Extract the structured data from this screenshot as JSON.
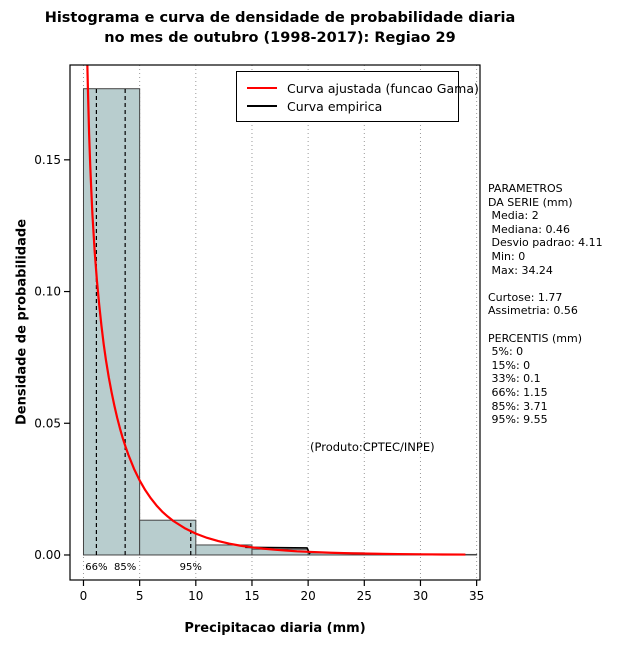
{
  "title": {
    "line1": "Histograma e curva de densidade de probabilidade diaria",
    "line2": "no mes de outubro (1998-2017): Regiao 29"
  },
  "axes": {
    "x_label": "Precipitacao diaria (mm)",
    "y_label": "Densidade de probabilidade"
  },
  "legend": [
    {
      "label": "Curva ajustada (funcao Gama)",
      "color": "#ff0000"
    },
    {
      "label": "Curva empirica",
      "color": "#000000"
    }
  ],
  "annotation": "(Produto:CPTEC/INPE)",
  "side_panel": {
    "lines": [
      "PARAMETROS",
      "DA SERIE (mm)",
      " Media: 2",
      " Mediana: 0.46",
      " Desvio padrao: 4.11",
      " Min: 0",
      " Max: 34.24",
      "",
      "Curtose: 1.77",
      "Assimetria: 0.56",
      "",
      "PERCENTIS (mm)",
      " 5%: 0",
      " 15%: 0",
      " 33%: 0.1",
      " 66%: 1.15",
      " 85%: 3.71",
      " 95%: 9.55"
    ]
  },
  "chart_data": {
    "type": "bar",
    "subtype": "histogram-with-density-curves",
    "title": "Histograma e curva de densidade de probabilidade diaria no mes de outubro (1998-2017): Regiao 29",
    "xlabel": "Precipitacao diaria (mm)",
    "ylabel": "Densidade de probabilidade",
    "xlim": [
      -1.2,
      35.3
    ],
    "ylim": [
      -0.0095,
      0.186
    ],
    "x_ticks": [
      0,
      5,
      10,
      15,
      20,
      25,
      30,
      35
    ],
    "y_ticks": [
      {
        "v": 0.0,
        "label": "0.00"
      },
      {
        "v": 0.05,
        "label": "0.05"
      },
      {
        "v": 0.1,
        "label": "0.10"
      },
      {
        "v": 0.15,
        "label": "0.15"
      }
    ],
    "grid": "vertical-dotted",
    "grid_color": "#999999",
    "histogram": {
      "bin_start": 0,
      "bin_width": 5,
      "densities": [
        0.177,
        0.0132,
        0.0038,
        0.0022,
        0.0008,
        0.0004,
        0.0002
      ],
      "fill": "#b8cdce",
      "stroke": "#444444"
    },
    "fitted_curve": {
      "name": "Curva ajustada (funcao Gama)",
      "color": "#ff0000",
      "x": [
        0.25,
        0.3,
        0.35,
        0.4,
        0.5,
        0.6,
        0.7,
        0.8,
        0.9,
        1.0,
        1.2,
        1.4,
        1.6,
        1.8,
        2.0,
        2.25,
        2.5,
        2.75,
        3.0,
        3.25,
        3.5,
        3.75,
        4.0,
        4.5,
        5.0,
        5.5,
        6.0,
        6.5,
        7.0,
        7.5,
        8.0,
        9.0,
        10,
        11,
        12,
        13,
        14,
        15,
        16,
        17,
        18,
        19,
        20,
        22,
        24,
        26,
        28,
        30,
        32,
        34
      ],
      "y": [
        0.21,
        0.195,
        0.185,
        0.176,
        0.16,
        0.148,
        0.138,
        0.129,
        0.122,
        0.115,
        0.104,
        0.095,
        0.087,
        0.08,
        0.074,
        0.0675,
        0.0618,
        0.0567,
        0.0521,
        0.048,
        0.0443,
        0.041,
        0.038,
        0.0327,
        0.0283,
        0.0246,
        0.0215,
        0.0188,
        0.0165,
        0.0146,
        0.0129,
        0.0102,
        0.0081,
        0.0065,
        0.0053,
        0.0043,
        0.0035,
        0.0029,
        0.0024,
        0.002,
        0.0017,
        0.0014,
        0.0012,
        0.00085,
        0.00062,
        0.00046,
        0.00034,
        0.00026,
        0.00019,
        0.00015
      ]
    },
    "empirical_curve": {
      "name": "Curva empirica",
      "color": "#000000",
      "x": [
        14.4,
        19.9,
        20.15
      ],
      "y": [
        0.0029,
        0.0027,
        0.0003
      ]
    },
    "percentile_lines": [
      {
        "label": "66%",
        "x": 1.15,
        "top": 0.177
      },
      {
        "label": "85%",
        "x": 3.71,
        "top": 0.177
      },
      {
        "label": "95%",
        "x": 9.55,
        "top": 0.0132
      }
    ],
    "stats": {
      "media": 2,
      "mediana": 0.46,
      "desvio_padrao": 4.11,
      "min": 0,
      "max": 34.24,
      "curtose": 1.77,
      "assimetria": 0.56,
      "percentis": {
        "5%": 0,
        "15%": 0,
        "33%": 0.1,
        "66%": 1.15,
        "85%": 3.71,
        "95%": 9.55
      }
    }
  }
}
